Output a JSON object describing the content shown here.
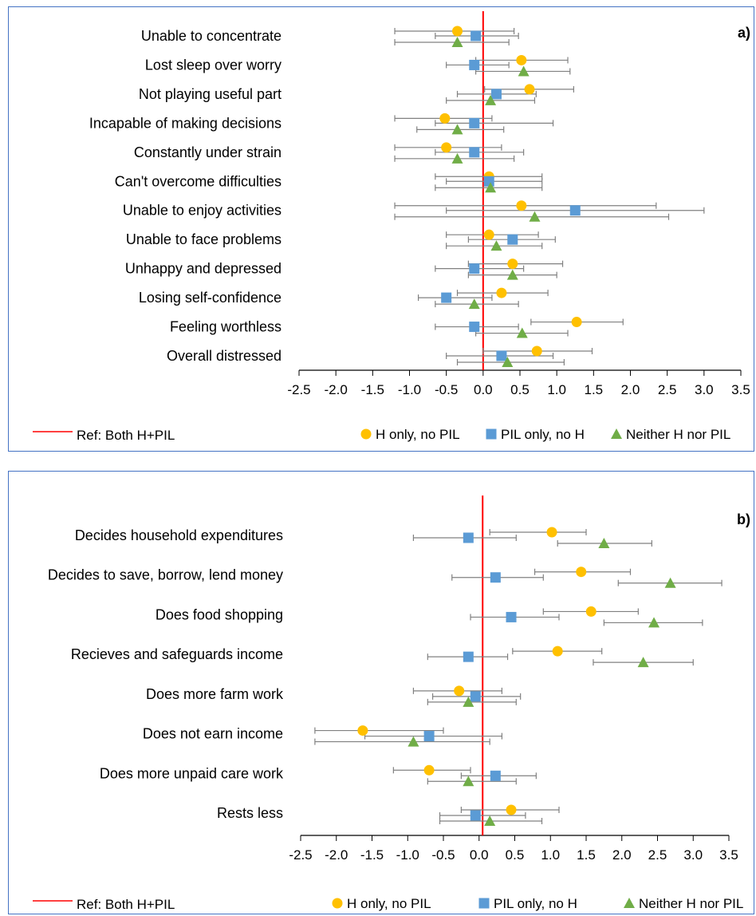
{
  "chart_data": [
    {
      "type": "scatter",
      "panel_label": "a)",
      "categories": [
        "Unable to concentrate",
        "Lost sleep over worry",
        "Not playing useful part",
        "Incapable of making decisions",
        "Constantly under strain",
        "Can't overcome difficulties",
        "Unable to enjoy activities",
        "Unable to face problems",
        "Unhappy and depressed",
        "Losing self-confidence",
        "Feeling worthless",
        "Overall distressed"
      ],
      "xlim": [
        -2.5,
        3.5
      ],
      "xticks": [
        "-2.5",
        "-2.0",
        "-1.5",
        "-1.0",
        "-0.5",
        "0.0",
        "0.5",
        "1.0",
        "1.5",
        "2.0",
        "2.5",
        "3.0",
        "3.5"
      ],
      "reference": {
        "label": "Ref: Both H+PIL",
        "x": 0,
        "color": "#ff0000"
      },
      "series": [
        {
          "name": "H only, no PIL",
          "marker": "circle",
          "color": "#ffc000",
          "values": [
            -0.35,
            0.52,
            0.63,
            -0.52,
            -0.5,
            0.08,
            0.52,
            0.08,
            0.4,
            0.25,
            1.27,
            0.73
          ],
          "lower": [
            -1.2,
            -0.1,
            0.02,
            -1.2,
            -1.2,
            -0.65,
            -1.2,
            -0.5,
            -0.2,
            -0.35,
            0.65,
            0.0
          ],
          "upper": [
            0.42,
            1.15,
            1.23,
            0.12,
            0.25,
            0.8,
            2.35,
            0.75,
            1.08,
            0.88,
            1.9,
            1.48
          ]
        },
        {
          "name": "PIL only, no H",
          "marker": "square",
          "color": "#5b9bd5",
          "values": [
            -0.1,
            -0.12,
            0.18,
            -0.12,
            -0.12,
            0.08,
            1.25,
            0.4,
            -0.12,
            -0.5,
            -0.12,
            0.25
          ],
          "lower": [
            -0.65,
            -0.5,
            -0.35,
            -0.65,
            -0.65,
            -0.5,
            -0.5,
            -0.2,
            -0.65,
            -0.88,
            -0.65,
            -0.5
          ],
          "upper": [
            0.48,
            0.35,
            0.72,
            0.95,
            0.55,
            0.8,
            3.0,
            0.98,
            0.55,
            0.12,
            0.48,
            0.95
          ]
        },
        {
          "name": "Neither H nor PIL",
          "marker": "triangle",
          "color": "#70ad47",
          "values": [
            -0.35,
            0.55,
            0.1,
            -0.35,
            -0.35,
            0.1,
            0.7,
            0.18,
            0.4,
            -0.12,
            0.53,
            0.33
          ],
          "lower": [
            -1.2,
            -0.1,
            -0.5,
            -0.9,
            -1.2,
            -0.65,
            -1.2,
            -0.5,
            -0.2,
            -0.65,
            -0.1,
            -0.35
          ],
          "upper": [
            0.35,
            1.18,
            0.7,
            0.28,
            0.42,
            0.8,
            2.52,
            0.8,
            1.0,
            0.48,
            1.15,
            1.1
          ]
        }
      ]
    },
    {
      "type": "scatter",
      "panel_label": "b)",
      "categories": [
        "Decides household expenditures",
        "Decides to save, borrow, lend money",
        "Does food shopping",
        "Recieves and safeguards income",
        "Does more farm work",
        "Does not earn income",
        "Does more unpaid care work",
        "Rests less"
      ],
      "xlim": [
        -2.5,
        3.5
      ],
      "xticks": [
        "-2.5",
        "-2.0",
        "-1.5",
        "-1.0",
        "-0.5",
        "0.0",
        "0.5",
        "1.0",
        "1.5",
        "2.0",
        "2.5",
        "3.0",
        "3.5"
      ],
      "reference": {
        "label": "Ref: Both H+PIL",
        "x": 0.05,
        "color": "#ff0000"
      },
      "series": [
        {
          "name": "H only, no PIL",
          "marker": "circle",
          "color": "#ffc000",
          "values": [
            1.02,
            1.43,
            1.57,
            1.1,
            -0.28,
            -1.63,
            -0.7,
            0.45
          ],
          "lower": [
            0.15,
            0.78,
            0.9,
            0.47,
            -0.92,
            -2.3,
            -1.2,
            -0.25
          ],
          "upper": [
            1.5,
            2.12,
            2.23,
            1.72,
            0.32,
            -0.5,
            -0.12,
            1.12
          ]
        },
        {
          "name": "PIL only, no H",
          "marker": "square",
          "color": "#5b9bd5",
          "values": [
            -0.15,
            0.23,
            0.45,
            -0.15,
            -0.05,
            -0.7,
            0.23,
            -0.05
          ],
          "lower": [
            -0.92,
            -0.38,
            -0.12,
            -0.72,
            -0.65,
            -1.6,
            -0.25,
            -0.55
          ],
          "upper": [
            0.52,
            0.9,
            1.12,
            0.4,
            0.58,
            0.32,
            0.8,
            0.65
          ]
        },
        {
          "name": "Neither H nor PIL",
          "marker": "triangle",
          "color": "#70ad47",
          "values": [
            1.75,
            2.68,
            2.45,
            2.3,
            -0.15,
            -0.92,
            -0.15,
            0.15
          ],
          "lower": [
            1.1,
            1.95,
            1.75,
            1.6,
            -0.72,
            -2.3,
            -0.72,
            -0.55
          ],
          "upper": [
            2.42,
            3.4,
            3.13,
            3.0,
            0.52,
            0.15,
            0.52,
            0.88
          ]
        }
      ]
    }
  ]
}
